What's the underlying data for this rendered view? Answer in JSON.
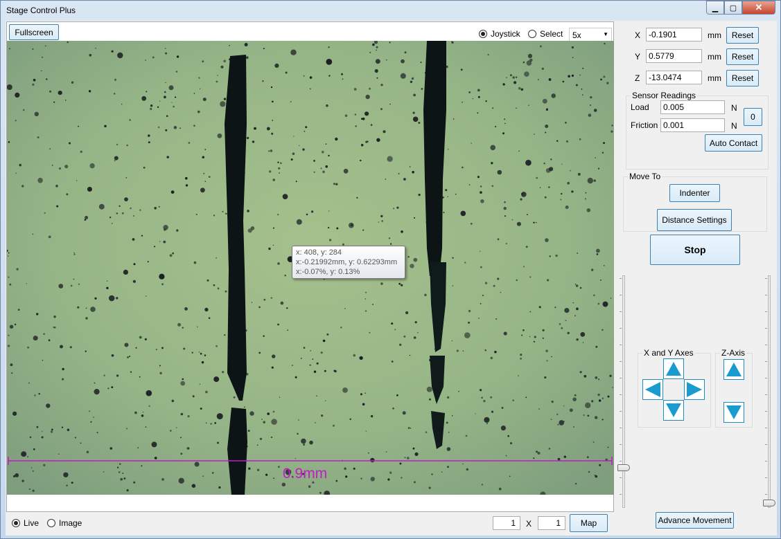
{
  "window": {
    "title": "Stage Control Plus"
  },
  "view": {
    "fullscreen_label": "Fullscreen",
    "mode_joystick": "Joystick",
    "mode_select": "Select",
    "zoom": "5x",
    "scale_label": "0.9mm",
    "tooltip": {
      "line1": "x: 408, y: 284",
      "line2": "x:-0.21992mm, y: 0.62293mm",
      "line3": "x:-0.07%, y: 0.13%"
    },
    "source_live": "Live",
    "source_image": "Image",
    "grid_x": "1",
    "grid_sep": "X",
    "grid_y": "1",
    "map_label": "Map"
  },
  "position": {
    "x_label": "X",
    "x_value": "-0.1901",
    "y_label": "Y",
    "y_value": "0.5779",
    "z_label": "Z",
    "z_value": "-13.0474",
    "unit": "mm",
    "reset_label": "Reset"
  },
  "sensor": {
    "title": "Sensor Readings",
    "load_label": "Load",
    "load_value": "0.005",
    "friction_label": "Friction",
    "friction_value": "0.001",
    "unit": "N",
    "zero_label": "0",
    "auto_contact_label": "Auto Contact"
  },
  "move_to": {
    "title": "Move To",
    "indenter_label": "Indenter",
    "distance_label": "Distance Settings"
  },
  "stop_label": "Stop",
  "axes": {
    "xy_title": "X and Y Axes",
    "z_title": "Z-Axis"
  },
  "advance_label": "Advance Movement",
  "colors": {
    "accent": "#1f8bbf",
    "arrow": "#1a9bd0",
    "scale_bar": "#c21ac8"
  }
}
